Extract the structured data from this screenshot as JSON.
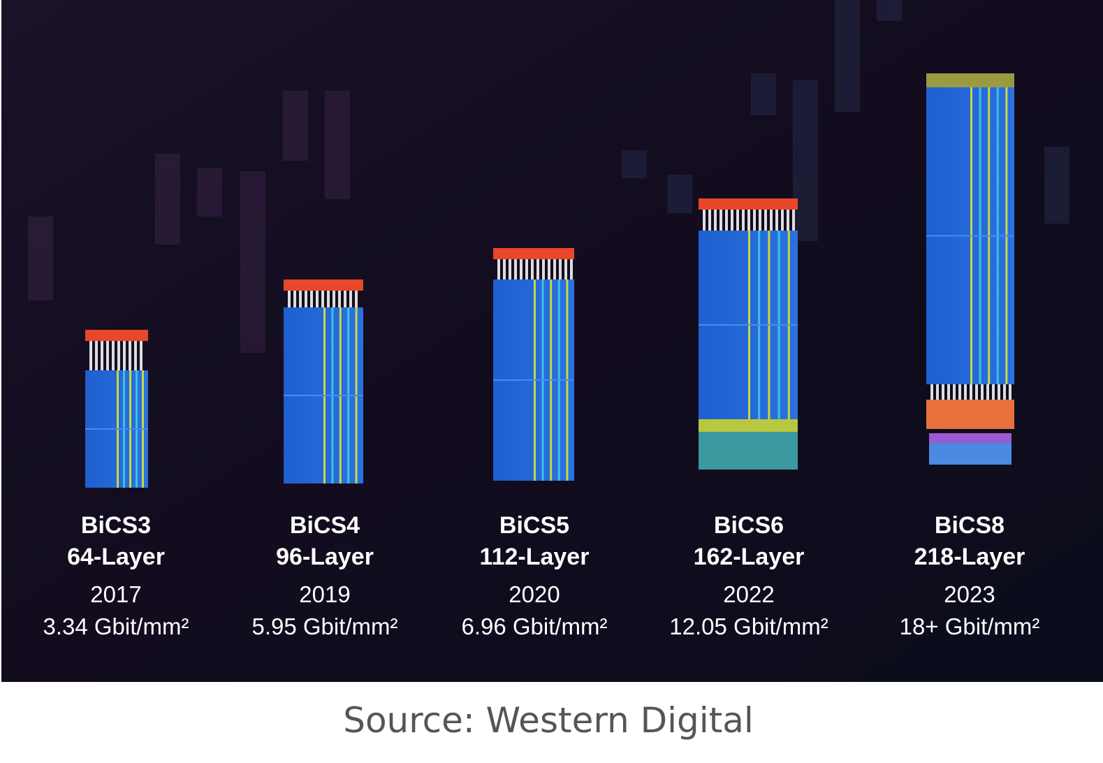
{
  "generations": [
    {
      "name": "BiCS3",
      "layers": "64-Layer",
      "year": "2017",
      "density": "3.34 Gbit/mm²"
    },
    {
      "name": "BiCS4",
      "layers": "96-Layer",
      "year": "2019",
      "density": "5.95 Gbit/mm²"
    },
    {
      "name": "BiCS5",
      "layers": "112-Layer",
      "year": "2020",
      "density": "6.96 Gbit/mm²"
    },
    {
      "name": "BiCS6",
      "layers": "162-Layer",
      "year": "2022",
      "density": "12.05 Gbit/mm²"
    },
    {
      "name": "BiCS8",
      "layers": "218-Layer",
      "year": "2023",
      "density": "18+ Gbit/mm²"
    }
  ],
  "source": "Source: Western Digital"
}
